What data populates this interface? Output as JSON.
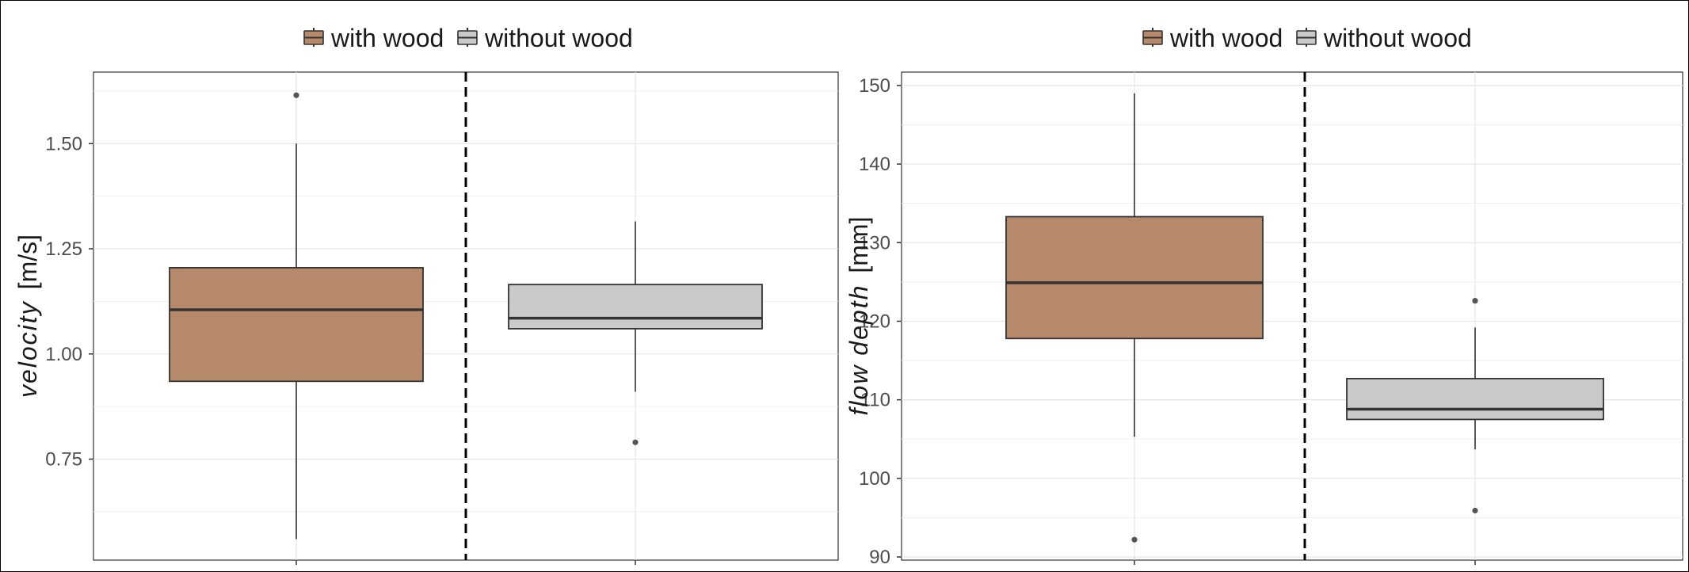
{
  "colors": {
    "with_wood": "#b5896a",
    "without_wood": "#cacaca",
    "outline": "#333333",
    "grid": "#e6e6e6"
  },
  "legend": {
    "items": [
      "with wood",
      "without wood"
    ]
  },
  "chart_data": [
    {
      "type": "box",
      "title": "",
      "ylabel_italic": "velocity",
      "ylabel_unit": "[m/s]",
      "ylim": [
        0.51,
        1.67
      ],
      "yticks": [
        0.75,
        1.0,
        1.25,
        1.5
      ],
      "ytick_labels": [
        "0.75",
        "1.00",
        "1.25",
        "1.50"
      ],
      "divider": "dashed line between groups",
      "legend_position": "top",
      "series": [
        {
          "name": "with wood",
          "min": 0.56,
          "q1": 0.935,
          "median": 1.105,
          "q3": 1.205,
          "max": 1.5,
          "outliers": [
            1.615
          ]
        },
        {
          "name": "without wood",
          "min": 0.91,
          "q1": 1.06,
          "median": 1.085,
          "q3": 1.165,
          "max": 1.315,
          "outliers": [
            0.79
          ]
        }
      ]
    },
    {
      "type": "box",
      "title": "",
      "ylabel_italic": "flow depth",
      "ylabel_unit": "[mm]",
      "ylim": [
        89.6,
        151.7
      ],
      "yticks": [
        90,
        100,
        110,
        120,
        130,
        140,
        150
      ],
      "ytick_labels": [
        "90",
        "100",
        "110",
        "120",
        "130",
        "140",
        "150"
      ],
      "divider": "dashed line between groups",
      "legend_position": "top",
      "series": [
        {
          "name": "with wood",
          "min": 105.3,
          "q1": 117.8,
          "median": 124.9,
          "q3": 133.3,
          "max": 149.0,
          "outliers": [
            92.2
          ]
        },
        {
          "name": "without wood",
          "min": 103.7,
          "q1": 107.5,
          "median": 108.8,
          "q3": 112.7,
          "max": 119.2,
          "outliers": [
            122.6,
            95.9
          ]
        }
      ]
    }
  ]
}
